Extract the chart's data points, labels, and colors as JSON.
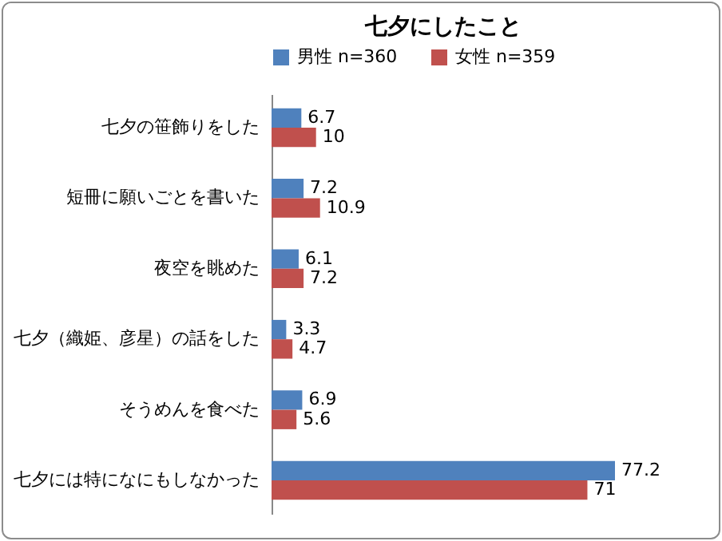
{
  "chart_data": {
    "type": "bar",
    "title": "七夕にしたこと",
    "orientation": "horizontal",
    "legend": "top",
    "data_labels": true,
    "categories": [
      "七夕の笹飾りをした",
      "短冊に願いごとを書いた",
      "夜空を眺めた",
      "七夕（織姫、彦星）の話をした",
      "そうめんを食べた",
      "七夕には特になにもしなかった"
    ],
    "series": [
      {
        "name": "男性 n=360",
        "color": "#4f81bd",
        "values": [
          6.7,
          7.2,
          6.1,
          3.3,
          6.9,
          77.2
        ]
      },
      {
        "name": "女性 n=359",
        "color": "#c0504d",
        "values": [
          10,
          10.9,
          7.2,
          4.7,
          5.6,
          71
        ]
      }
    ]
  }
}
